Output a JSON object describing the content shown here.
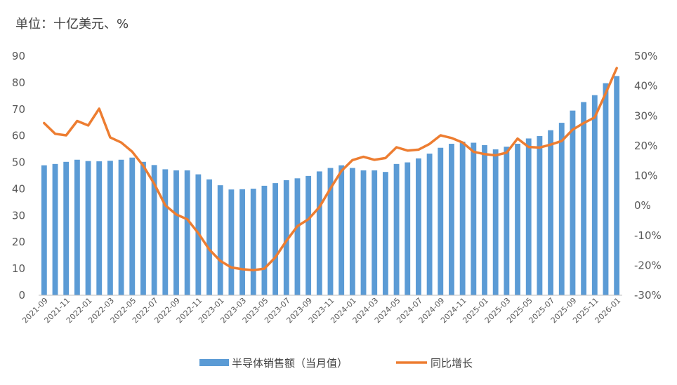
{
  "unit_label": "单位：十亿美元、%",
  "chart_data": {
    "type": "bar+line",
    "title": "",
    "x": [
      "2021-09",
      "2021-10",
      "2021-11",
      "2021-12",
      "2022-01",
      "2022-02",
      "2022-03",
      "2022-04",
      "2022-05",
      "2022-06",
      "2022-07",
      "2022-08",
      "2022-09",
      "2022-10",
      "2022-11",
      "2022-12",
      "2023-01",
      "2023-02",
      "2023-03",
      "2023-04",
      "2023-05",
      "2023-06",
      "2023-07",
      "2023-08",
      "2023-09",
      "2023-10",
      "2023-11",
      "2023-12",
      "2024-01",
      "2024-02",
      "2024-03",
      "2024-04",
      "2024-05",
      "2024-06",
      "2024-07",
      "2024-08",
      "2024-09",
      "2024-10",
      "2024-11",
      "2024-12",
      "2025-01",
      "2025-02",
      "2025-03",
      "2025-04",
      "2025-05",
      "2025-06",
      "2025-07",
      "2025-08",
      "2025-09",
      "2025-10",
      "2025-11",
      "2025-12",
      "2026-01"
    ],
    "x_tick_labels": [
      "2021-09",
      "2021-11",
      "2022-01",
      "2022-03",
      "2022-05",
      "2022-07",
      "2022-09",
      "2022-11",
      "2023-01",
      "2023-03",
      "2023-05",
      "2023-07",
      "2023-09",
      "2023-11",
      "2024-01",
      "2024-03",
      "2024-05",
      "2024-07",
      "2024-09",
      "2024-11",
      "2025-01",
      "2025-03",
      "2025-05",
      "2025-07",
      "2025-09",
      "2025-11",
      "2026-01"
    ],
    "y_left": {
      "ylim": [
        0,
        90
      ],
      "ticks": [
        0,
        10,
        20,
        30,
        40,
        50,
        60,
        70,
        80,
        90
      ]
    },
    "y_right": {
      "ylim": [
        -30,
        50
      ],
      "ticks": [
        -30,
        -20,
        -10,
        0,
        10,
        20,
        30,
        40,
        50
      ],
      "tick_labels": [
        "-30%",
        "-20%",
        "-10%",
        "0%",
        "10%",
        "20%",
        "30%",
        "40%",
        "50%"
      ]
    },
    "series": [
      {
        "name": "半导体销售额（当月值）",
        "type": "bar",
        "axis": "left",
        "color": "#5B9BD5",
        "values": [
          48.9,
          49.4,
          50.2,
          51.0,
          50.5,
          50.4,
          50.6,
          51.0,
          51.8,
          50.2,
          49.0,
          47.4,
          47.0,
          47.0,
          45.5,
          43.6,
          41.4,
          39.8,
          39.9,
          40.1,
          41.2,
          42.2,
          43.3,
          44.0,
          44.9,
          46.6,
          47.9,
          48.9,
          47.9,
          47.0,
          47.0,
          46.4,
          49.4,
          50.0,
          51.5,
          53.3,
          55.5,
          57.0,
          57.8,
          57.4,
          56.5,
          54.9,
          55.9,
          57.0,
          59.0,
          59.9,
          62.1,
          64.9,
          69.5,
          72.7,
          75.3,
          79.8,
          82.5
        ]
      },
      {
        "name": "同比增长",
        "type": "line",
        "axis": "right",
        "color": "#ED7D31",
        "values": [
          27.6,
          24.0,
          23.5,
          28.3,
          26.8,
          32.4,
          22.8,
          21.1,
          18.0,
          13.3,
          7.3,
          0.1,
          -3.0,
          -4.6,
          -9.2,
          -14.7,
          -18.5,
          -20.7,
          -21.3,
          -21.6,
          -21.1,
          -17.3,
          -11.8,
          -6.9,
          -4.6,
          -0.5,
          5.7,
          11.6,
          15.2,
          16.3,
          15.3,
          15.9,
          19.5,
          18.4,
          18.7,
          20.6,
          23.5,
          22.6,
          21.1,
          18.0,
          17.2,
          16.8,
          17.7,
          22.4,
          19.6,
          19.4,
          20.4,
          21.6,
          25.4,
          27.6,
          29.5,
          37.6,
          46.0
        ]
      }
    ],
    "legend": {
      "position": "bottom"
    },
    "grid": false
  }
}
